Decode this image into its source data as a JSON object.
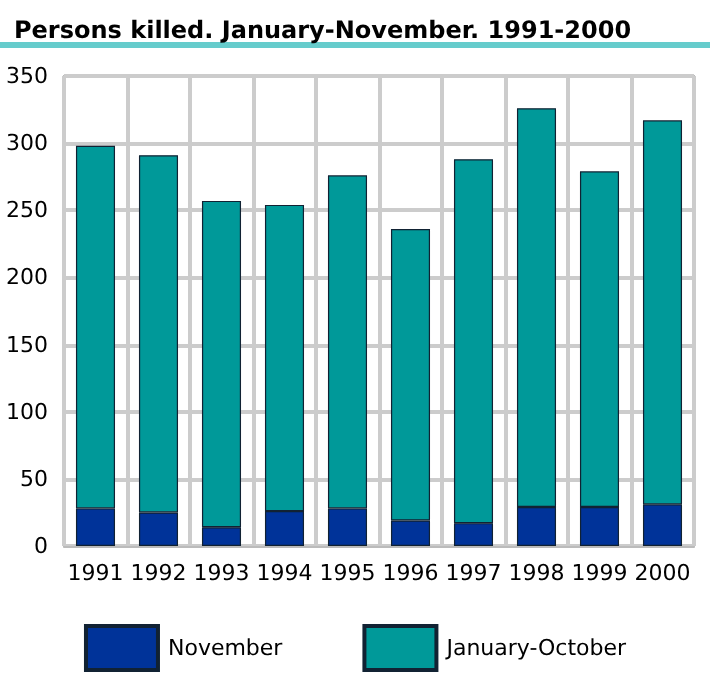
{
  "chart_data": {
    "type": "bar",
    "title": "Persons killed. January-November. 1991-2000",
    "categories": [
      "1991",
      "1992",
      "1993",
      "1994",
      "1995",
      "1996",
      "1997",
      "1998",
      "1999",
      "2000"
    ],
    "stacked": true,
    "series": [
      {
        "name": "November",
        "color": "#003399",
        "values": [
          28,
          25,
          14,
          26,
          28,
          19,
          17,
          29,
          29,
          31
        ]
      },
      {
        "name": "January-October",
        "color": "#009999",
        "values": [
          270,
          266,
          243,
          228,
          248,
          217,
          271,
          297,
          250,
          286
        ]
      }
    ],
    "ylim": [
      0,
      350
    ],
    "yticks": [
      0,
      50,
      100,
      150,
      200,
      250,
      300,
      350
    ],
    "grid": true,
    "legend": "bottom"
  }
}
